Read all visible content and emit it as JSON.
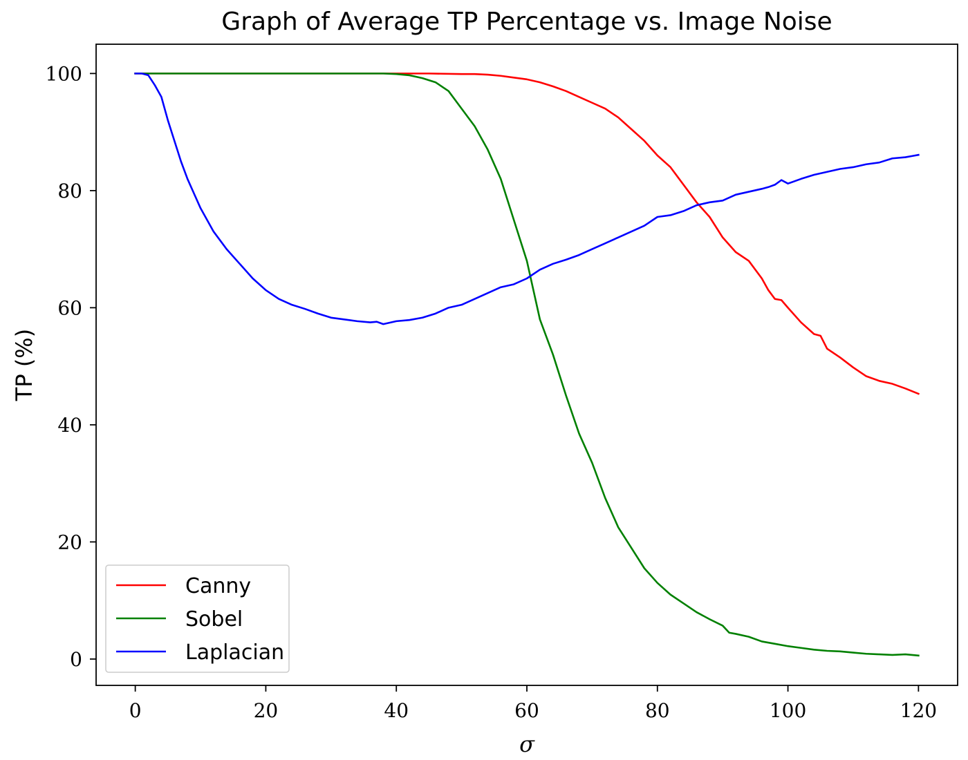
{
  "chart_data": {
    "type": "line",
    "title": "Graph of Average TP Percentage vs. Image Noise",
    "xlabel": "σ",
    "ylabel": "TP (%)",
    "xlim": [
      -6,
      126
    ],
    "ylim": [
      -4.5,
      105
    ],
    "xticks": [
      0,
      20,
      40,
      60,
      80,
      100,
      120
    ],
    "yticks": [
      0,
      20,
      40,
      60,
      80,
      100
    ],
    "grid": false,
    "legend_position": "lower-left",
    "series": [
      {
        "name": "Canny",
        "color": "#ff0000",
        "points": [
          [
            0,
            100
          ],
          [
            10,
            100
          ],
          [
            20,
            100
          ],
          [
            30,
            100
          ],
          [
            40,
            100
          ],
          [
            45,
            100
          ],
          [
            50,
            99.9
          ],
          [
            52,
            99.9
          ],
          [
            54,
            99.8
          ],
          [
            56,
            99.6
          ],
          [
            58,
            99.3
          ],
          [
            60,
            99
          ],
          [
            62,
            98.5
          ],
          [
            64,
            97.8
          ],
          [
            66,
            97
          ],
          [
            68,
            96
          ],
          [
            70,
            95
          ],
          [
            72,
            94
          ],
          [
            74,
            92.5
          ],
          [
            76,
            90.5
          ],
          [
            78,
            88.5
          ],
          [
            80,
            86
          ],
          [
            82,
            84
          ],
          [
            83,
            82.5
          ],
          [
            84,
            81
          ],
          [
            86,
            78
          ],
          [
            88,
            75.5
          ],
          [
            90,
            72
          ],
          [
            92,
            69.5
          ],
          [
            94,
            68
          ],
          [
            96,
            65
          ],
          [
            97,
            63
          ],
          [
            98,
            61.5
          ],
          [
            99,
            61.3
          ],
          [
            100,
            60
          ],
          [
            102,
            57.5
          ],
          [
            104,
            55.5
          ],
          [
            105,
            55.2
          ],
          [
            106,
            53
          ],
          [
            108,
            51.5
          ],
          [
            110,
            49.8
          ],
          [
            112,
            48.3
          ],
          [
            114,
            47.5
          ],
          [
            116,
            47
          ],
          [
            118,
            46.2
          ],
          [
            120,
            45.3
          ]
        ]
      },
      {
        "name": "Sobel",
        "color": "#008000",
        "points": [
          [
            0,
            100
          ],
          [
            10,
            100
          ],
          [
            20,
            100
          ],
          [
            30,
            100
          ],
          [
            38,
            100
          ],
          [
            40,
            99.9
          ],
          [
            42,
            99.7
          ],
          [
            44,
            99.2
          ],
          [
            46,
            98.5
          ],
          [
            48,
            97
          ],
          [
            50,
            94
          ],
          [
            52,
            91
          ],
          [
            54,
            87
          ],
          [
            56,
            82
          ],
          [
            58,
            75
          ],
          [
            60,
            68
          ],
          [
            61,
            63
          ],
          [
            62,
            58
          ],
          [
            64,
            52
          ],
          [
            66,
            45
          ],
          [
            68,
            38.5
          ],
          [
            70,
            33.5
          ],
          [
            72,
            27.5
          ],
          [
            74,
            22.5
          ],
          [
            76,
            19
          ],
          [
            78,
            15.5
          ],
          [
            80,
            13
          ],
          [
            82,
            11
          ],
          [
            84,
            9.5
          ],
          [
            86,
            8
          ],
          [
            88,
            6.8
          ],
          [
            90,
            5.7
          ],
          [
            91,
            4.5
          ],
          [
            92,
            4.3
          ],
          [
            94,
            3.8
          ],
          [
            96,
            3
          ],
          [
            98,
            2.6
          ],
          [
            100,
            2.2
          ],
          [
            102,
            1.9
          ],
          [
            104,
            1.6
          ],
          [
            106,
            1.4
          ],
          [
            108,
            1.3
          ],
          [
            110,
            1.1
          ],
          [
            112,
            0.9
          ],
          [
            114,
            0.8
          ],
          [
            116,
            0.7
          ],
          [
            118,
            0.8
          ],
          [
            120,
            0.6
          ]
        ]
      },
      {
        "name": "Laplacian",
        "color": "#0000ff",
        "points": [
          [
            0,
            100
          ],
          [
            1,
            100
          ],
          [
            2,
            99.7
          ],
          [
            3,
            98
          ],
          [
            4,
            96
          ],
          [
            5,
            92
          ],
          [
            6,
            88.5
          ],
          [
            7,
            85
          ],
          [
            8,
            82
          ],
          [
            9,
            79.5
          ],
          [
            10,
            77
          ],
          [
            11,
            75
          ],
          [
            12,
            73
          ],
          [
            14,
            70
          ],
          [
            16,
            67.5
          ],
          [
            18,
            65
          ],
          [
            20,
            63
          ],
          [
            22,
            61.5
          ],
          [
            24,
            60.5
          ],
          [
            26,
            59.8
          ],
          [
            28,
            59
          ],
          [
            30,
            58.3
          ],
          [
            32,
            58
          ],
          [
            34,
            57.7
          ],
          [
            36,
            57.5
          ],
          [
            37,
            57.6
          ],
          [
            38,
            57.2
          ],
          [
            40,
            57.7
          ],
          [
            42,
            57.9
          ],
          [
            44,
            58.3
          ],
          [
            46,
            59
          ],
          [
            48,
            60
          ],
          [
            50,
            60.5
          ],
          [
            52,
            61.5
          ],
          [
            54,
            62.5
          ],
          [
            56,
            63.5
          ],
          [
            58,
            64
          ],
          [
            60,
            65
          ],
          [
            62,
            66.5
          ],
          [
            64,
            67.5
          ],
          [
            66,
            68.2
          ],
          [
            68,
            69
          ],
          [
            70,
            70
          ],
          [
            72,
            71
          ],
          [
            74,
            72
          ],
          [
            76,
            73
          ],
          [
            78,
            74
          ],
          [
            80,
            75.5
          ],
          [
            82,
            75.8
          ],
          [
            84,
            76.5
          ],
          [
            86,
            77.5
          ],
          [
            88,
            78
          ],
          [
            90,
            78.3
          ],
          [
            92,
            79.3
          ],
          [
            94,
            79.8
          ],
          [
            96,
            80.3
          ],
          [
            97,
            80.6
          ],
          [
            98,
            81
          ],
          [
            99,
            81.8
          ],
          [
            100,
            81.2
          ],
          [
            102,
            82
          ],
          [
            104,
            82.7
          ],
          [
            106,
            83.2
          ],
          [
            108,
            83.7
          ],
          [
            110,
            84
          ],
          [
            112,
            84.5
          ],
          [
            114,
            84.8
          ],
          [
            116,
            85.5
          ],
          [
            118,
            85.7
          ],
          [
            119,
            85.9
          ],
          [
            120,
            86.1
          ]
        ]
      }
    ]
  }
}
